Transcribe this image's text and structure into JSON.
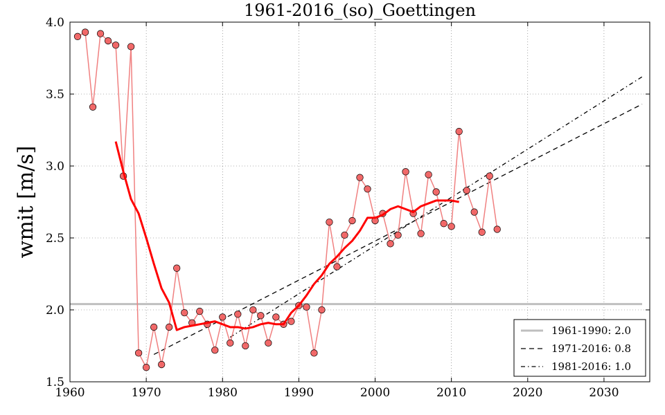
{
  "chart_data": {
    "type": "line",
    "title": "1961-2016_(so)_Goettingen",
    "xlabel": "",
    "ylabel": "wmit [m/s]",
    "xlim": [
      1960,
      2036
    ],
    "ylim": [
      1.5,
      4.0
    ],
    "xticks": [
      1960,
      1970,
      1980,
      1990,
      2000,
      2010,
      2020,
      2030
    ],
    "yticks": [
      1.5,
      2.0,
      2.5,
      3.0,
      3.5,
      4.0
    ],
    "xtick_labels": [
      "1960",
      "1970",
      "1980",
      "1990",
      "2000",
      "2010",
      "2020",
      "2030"
    ],
    "ytick_labels": [
      "1.5",
      "2.0",
      "2.5",
      "3.0",
      "3.5",
      "4.0"
    ],
    "grid": true,
    "legend_position": "bottom-right",
    "colors": {
      "observations_line": "#f08080",
      "observations_marker": "#f06262",
      "smoothed": "#ff0000",
      "reference": "#bfbfbf",
      "trend": "#000000"
    },
    "observations": {
      "x": [
        1961,
        1962,
        1963,
        1964,
        1965,
        1966,
        1967,
        1968,
        1969,
        1970,
        1971,
        1972,
        1973,
        1974,
        1975,
        1976,
        1977,
        1978,
        1979,
        1980,
        1981,
        1982,
        1983,
        1984,
        1985,
        1986,
        1987,
        1988,
        1989,
        1990,
        1991,
        1992,
        1993,
        1994,
        1995,
        1996,
        1997,
        1998,
        1999,
        2000,
        2001,
        2002,
        2003,
        2004,
        2005,
        2006,
        2007,
        2008,
        2009,
        2010,
        2011,
        2012,
        2013,
        2014,
        2015,
        2016
      ],
      "y": [
        3.9,
        3.93,
        3.41,
        3.92,
        3.87,
        3.84,
        2.93,
        3.83,
        1.7,
        1.6,
        1.88,
        1.62,
        1.88,
        2.29,
        1.98,
        1.91,
        1.99,
        1.9,
        1.72,
        1.95,
        1.77,
        1.97,
        1.75,
        2.0,
        1.96,
        1.77,
        1.95,
        1.9,
        1.92,
        2.03,
        2.02,
        1.7,
        2.0,
        2.61,
        2.3,
        2.52,
        2.62,
        2.92,
        2.84,
        2.62,
        2.67,
        2.46,
        2.52,
        2.96,
        2.67,
        2.53,
        2.94,
        2.82,
        2.6,
        2.58,
        3.24,
        2.83,
        2.68,
        2.54,
        2.93,
        2.56
      ]
    },
    "smoothed": {
      "x": [
        1966,
        1967,
        1968,
        1969,
        1970,
        1971,
        1972,
        1973,
        1974,
        1975,
        1976,
        1977,
        1978,
        1979,
        1980,
        1981,
        1982,
        1983,
        1984,
        1985,
        1986,
        1987,
        1988,
        1989,
        1990,
        1991,
        1992,
        1993,
        1994,
        1995,
        1996,
        1997,
        1998,
        1999,
        2000,
        2001,
        2002,
        2003,
        2004,
        2005,
        2006,
        2007,
        2008,
        2009,
        2010,
        2011
      ],
      "y": [
        3.17,
        2.96,
        2.77,
        2.67,
        2.5,
        2.32,
        2.15,
        2.05,
        1.86,
        1.88,
        1.89,
        1.9,
        1.91,
        1.92,
        1.9,
        1.88,
        1.88,
        1.87,
        1.88,
        1.9,
        1.91,
        1.9,
        1.9,
        1.98,
        2.03,
        2.1,
        2.18,
        2.24,
        2.32,
        2.37,
        2.43,
        2.48,
        2.55,
        2.64,
        2.64,
        2.66,
        2.7,
        2.72,
        2.7,
        2.68,
        2.72,
        2.74,
        2.76,
        2.76,
        2.76,
        2.75
      ]
    },
    "series": [
      {
        "name": "1961-1990: 2.0",
        "style": "solid",
        "x": [
          1960,
          2035
        ],
        "y": [
          2.04,
          2.04
        ]
      },
      {
        "name": "1971-2016: 0.8",
        "style": "dashed",
        "x": [
          1971,
          2035
        ],
        "y": [
          1.69,
          3.43
        ]
      },
      {
        "name": "1981-2016: 1.0",
        "style": "dashdot",
        "x": [
          1981,
          2035
        ],
        "y": [
          1.81,
          3.62
        ]
      }
    ]
  }
}
